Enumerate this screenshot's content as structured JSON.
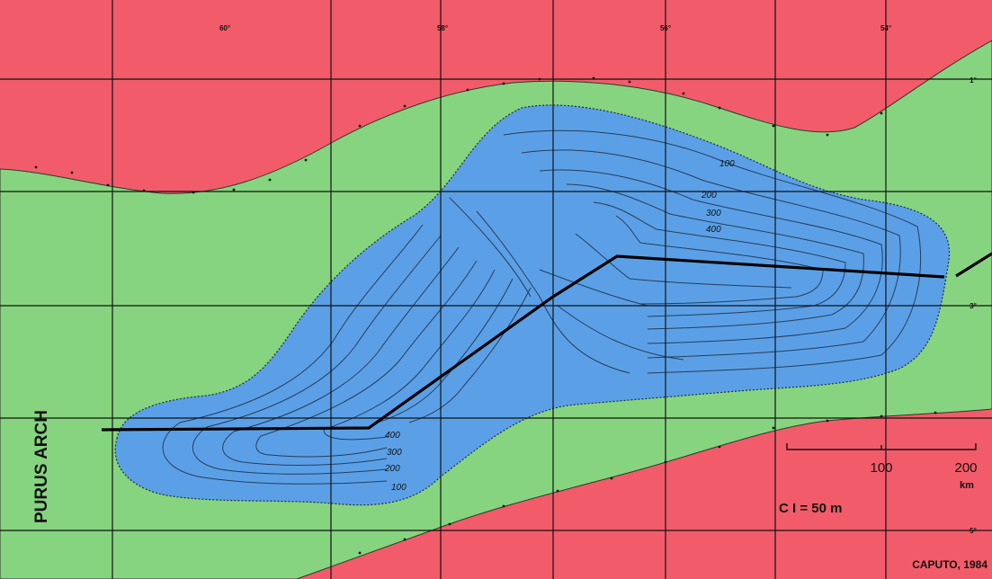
{
  "map": {
    "side_label": "PURUS ARCH",
    "longitude_labels": [
      "60°",
      "58°",
      "56°",
      "54°"
    ],
    "latitude_labels": [
      "1°",
      "3°",
      "5°"
    ],
    "contour_labels_east": [
      "100",
      "200",
      "300",
      "400"
    ],
    "contour_labels_west": [
      "400",
      "300",
      "200",
      "100"
    ],
    "scale_bar": {
      "label_100": "100",
      "label_200": "200",
      "unit": "km"
    },
    "contour_interval": "C I = 50 m",
    "credit": "CAPUTO, 1984",
    "colors": {
      "outcrop": "#f25c6a",
      "basin_margin": "#86d47f",
      "basin_interior": "#5ba0e6",
      "contour": "#1c2b45",
      "section_line": "#000000"
    }
  }
}
